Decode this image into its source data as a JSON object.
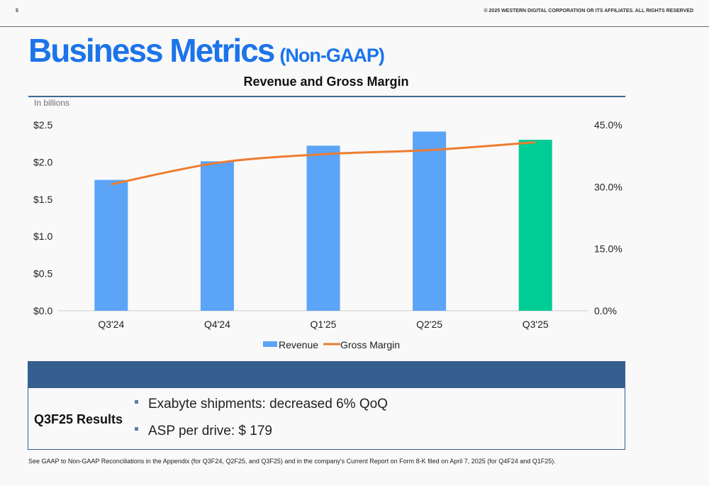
{
  "header": {
    "page_number": "5",
    "copyright": "© 2025 WESTERN DIGITAL CORPORATION OR ITS AFFILIATES. ALL RIGHTS RESERVED"
  },
  "title": {
    "main": "Business Metrics",
    "sub": "(Non-GAAP)"
  },
  "chart_data": {
    "type": "bar",
    "title": "Revenue and Gross Margin",
    "units_note": "In billions",
    "categories": [
      "Q3'24",
      "Q4'24",
      "Q1'25",
      "Q2'25",
      "Q3'25"
    ],
    "series": [
      {
        "name": "Revenue",
        "type": "bar",
        "axis": "left",
        "values": [
          1.76,
          2.01,
          2.22,
          2.41,
          2.3
        ],
        "colors": [
          "#5ba4f7",
          "#5ba4f7",
          "#5ba4f7",
          "#5ba4f7",
          "#00cc96"
        ]
      },
      {
        "name": "Gross Margin",
        "type": "line",
        "axis": "right",
        "values": [
          30.6,
          35.8,
          37.9,
          38.9,
          40.8
        ],
        "color": "#ed7d31"
      }
    ],
    "y_left": {
      "ylim": [
        0,
        2.5
      ],
      "ticks": [
        "$0.0",
        "$0.5",
        "$1.0",
        "$1.5",
        "$2.0",
        "$2.5"
      ]
    },
    "y_right": {
      "ylim": [
        0,
        45
      ],
      "ticks": [
        "0.0%",
        "15.0%",
        "30.0%",
        "45.0%"
      ]
    },
    "legend_position": "bottom",
    "legend": [
      "Revenue",
      "Gross Margin"
    ],
    "grid": false
  },
  "results": {
    "label": "Q3F25 Results",
    "bullets": [
      "Exabyte shipments: decreased 6% QoQ",
      "ASP per drive: $ 179"
    ]
  },
  "footnote": "See GAAP to Non-GAAP Reconciliations in the Appendix (for Q3F24, Q2F25, and Q3F25) and in the company's Current Report on Form 8-K filed on April 7, 2025 (for Q4F24 and Q1F25).",
  "colors": {
    "accent": "#1c74e9",
    "header_bar": "#355f8f",
    "revenue": "#5ba4f7",
    "current": "#00cc96",
    "margin": "#ed7d31"
  }
}
